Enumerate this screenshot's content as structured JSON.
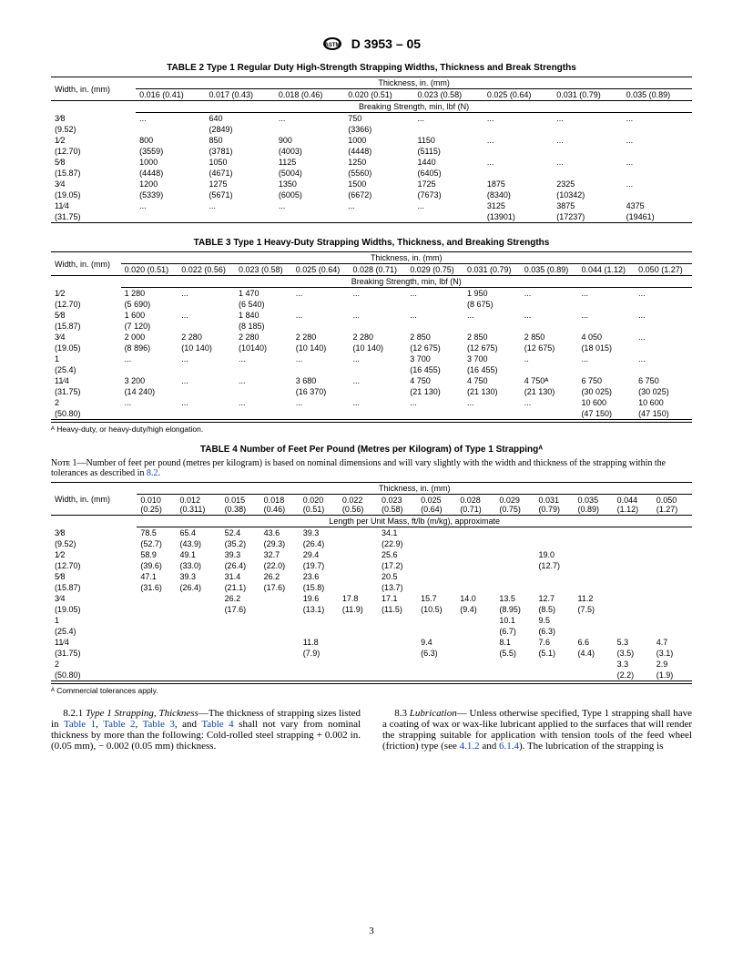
{
  "doc": {
    "designation": "D 3953 – 05",
    "page": "3"
  },
  "table2": {
    "title": "TABLE 2  Type 1 Regular Duty High-Strength Strapping Widths, Thickness and Break Strengths",
    "width_label": "Width, in. (mm)",
    "thick_head": "Thickness, in. (mm)",
    "break_head": "Breaking Strength, min, lbf (N)",
    "cols": [
      "0.016 (0.41)",
      "0.017 (0.43)",
      "0.018 (0.46)",
      "0.020 (0.51)",
      "0.023 (0.58)",
      "0.025 (0.64)",
      "0.031 (0.79)",
      "0.035 (0.89)"
    ],
    "rows": [
      {
        "w": "3⁄8",
        "mm": "(9.52)",
        "c": [
          [
            "...",
            ""
          ],
          [
            "640",
            "(2849)"
          ],
          [
            "...",
            ""
          ],
          [
            "750",
            "(3366)"
          ],
          [
            "...",
            ""
          ],
          [
            "...",
            ""
          ],
          [
            "...",
            ""
          ],
          [
            "...",
            ""
          ]
        ]
      },
      {
        "w": "1⁄2",
        "mm": "(12.70)",
        "c": [
          [
            "800",
            "(3559)"
          ],
          [
            "850",
            "(3781)"
          ],
          [
            "900",
            "(4003)"
          ],
          [
            "1000",
            "(4448)"
          ],
          [
            "1150",
            "(5115)"
          ],
          [
            "...",
            ""
          ],
          [
            "...",
            ""
          ],
          [
            "...",
            ""
          ]
        ]
      },
      {
        "w": "5⁄8",
        "mm": "(15.87)",
        "c": [
          [
            "1000",
            "(4448)"
          ],
          [
            "1050",
            "(4671)"
          ],
          [
            "1125",
            "(5004)"
          ],
          [
            "1250",
            "(5560)"
          ],
          [
            "1440",
            "(6405)"
          ],
          [
            "...",
            ""
          ],
          [
            "...",
            ""
          ],
          [
            "...",
            ""
          ]
        ]
      },
      {
        "w": "3⁄4",
        "mm": "(19.05)",
        "c": [
          [
            "1200",
            "(5339)"
          ],
          [
            "1275",
            "(5671)"
          ],
          [
            "1350",
            "(6005)"
          ],
          [
            "1500",
            "(6672)"
          ],
          [
            "1725",
            "(7673)"
          ],
          [
            "1875",
            "(8340)"
          ],
          [
            "2325",
            "(10342)"
          ],
          [
            "...",
            ""
          ]
        ]
      },
      {
        "w": "11⁄4",
        "mm": "(31.75)",
        "c": [
          [
            "...",
            ""
          ],
          [
            "...",
            ""
          ],
          [
            "...",
            ""
          ],
          [
            "...",
            ""
          ],
          [
            "...",
            ""
          ],
          [
            "3125",
            "(13901)"
          ],
          [
            "3875",
            "(17237)"
          ],
          [
            "4375",
            "(19461)"
          ]
        ]
      }
    ]
  },
  "table3": {
    "title": "TABLE 3  Type 1 Heavy-Duty Strapping Widths, Thickness, and Breaking Strengths",
    "width_label": "Width, in. (mm)",
    "thick_head": "Thickness, in. (mm)",
    "break_head": "Breaking Strength, min, lbf (N)",
    "cols": [
      "0.020 (0.51)",
      "0.022 (0.56)",
      "0.023 (0.58)",
      "0.025 (0.64)",
      "0.028 (0.71)",
      "0.029 (0.75)",
      "0.031 (0.79)",
      "0.035 (0.89)",
      "0.044 (1.12)",
      "0.050 (1.27)"
    ],
    "rows": [
      {
        "w": "1⁄2",
        "mm": "(12.70)",
        "c": [
          [
            "1 280",
            "(5 690)"
          ],
          [
            "...",
            ""
          ],
          [
            "1 470",
            "(6 540)"
          ],
          [
            "...",
            ""
          ],
          [
            "...",
            ""
          ],
          [
            "...",
            ""
          ],
          [
            "1 950",
            "(8 675)"
          ],
          [
            "...",
            ""
          ],
          [
            "...",
            ""
          ],
          [
            "...",
            ""
          ]
        ]
      },
      {
        "w": "5⁄8",
        "mm": "(15.87)",
        "c": [
          [
            "1 600",
            "(7 120)"
          ],
          [
            "...",
            ""
          ],
          [
            "1 840",
            "(8 185)"
          ],
          [
            "...",
            ""
          ],
          [
            "...",
            ""
          ],
          [
            "...",
            ""
          ],
          [
            "...",
            ""
          ],
          [
            "...",
            ""
          ],
          [
            "...",
            ""
          ],
          [
            "...",
            ""
          ]
        ]
      },
      {
        "w": "3⁄4",
        "mm": "(19.05)",
        "c": [
          [
            "2 000",
            "(8 896)"
          ],
          [
            "2 280",
            "(10 140)"
          ],
          [
            "2 280",
            "(10140)"
          ],
          [
            "2 280",
            "(10 140)"
          ],
          [
            "2 280",
            "(10 140)"
          ],
          [
            "2 850",
            "(12 675)"
          ],
          [
            "2 850",
            "(12 675)"
          ],
          [
            "2 850",
            "(12 675)"
          ],
          [
            "4 050",
            "(18 015)"
          ],
          [
            "...",
            ""
          ]
        ]
      },
      {
        "w": "1",
        "mm": "(25.4)",
        "c": [
          [
            "...",
            ""
          ],
          [
            "...",
            ""
          ],
          [
            "...",
            ""
          ],
          [
            "...",
            ""
          ],
          [
            "...",
            ""
          ],
          [
            "3 700",
            "(16 455)"
          ],
          [
            "3 700",
            "(16 455)"
          ],
          [
            "..",
            ""
          ],
          [
            "...",
            ""
          ],
          [
            "...",
            ""
          ]
        ]
      },
      {
        "w": "11⁄4",
        "mm": "(31.75)",
        "c": [
          [
            "3 200",
            "(14 240)"
          ],
          [
            "...",
            ""
          ],
          [
            "...",
            ""
          ],
          [
            "3 680",
            "(16 370)"
          ],
          [
            "...",
            ""
          ],
          [
            "4 750",
            "(21 130)"
          ],
          [
            "4 750",
            "(21 130)"
          ],
          [
            "4 750ᴬ",
            "(21 130)"
          ],
          [
            "6 750",
            "(30 025)"
          ],
          [
            "6 750",
            "(30 025)"
          ]
        ]
      },
      {
        "w": "2",
        "mm": "(50.80)",
        "c": [
          [
            "...",
            ""
          ],
          [
            "...",
            ""
          ],
          [
            "...",
            ""
          ],
          [
            "...",
            ""
          ],
          [
            "...",
            ""
          ],
          [
            "...",
            ""
          ],
          [
            "...",
            ""
          ],
          [
            "...",
            ""
          ],
          [
            "10 600",
            "(47 150)"
          ],
          [
            "10 600",
            "(47 150)"
          ]
        ]
      }
    ],
    "footnote": "ᴬ Heavy-duty, or heavy-duty/high elongation."
  },
  "table4": {
    "title": "TABLE 4  Number of Feet Per Pound (Metres per Kilogram) of Type 1 Strappingᴬ",
    "note": "Nᴏᴛᴇ 1—Number of feet per pound (metres per kilogram) is based on nominal dimensions and will vary slightly with the width and thickness of the strapping within the tolerances as described in ",
    "note_link": "8.2",
    "width_label": "Width, in. (mm)",
    "thick_head": "Thickness, in. (mm)",
    "length_head": "Length per Unit Mass, ft/lb (m/kg), approximate",
    "cols": [
      "0.010",
      "0.012",
      "0.015",
      "0.018",
      "0.020",
      "0.022",
      "0.023",
      "0.025",
      "0.028",
      "0.029",
      "0.031",
      "0.035",
      "0.044",
      "0.050"
    ],
    "cols_mm": [
      "(0.25)",
      "(0.311)",
      "(0.38)",
      "(0.46)",
      "(0.51)",
      "(0.56)",
      "(0.58)",
      "(0.64)",
      "(0.71)",
      "(0.75)",
      "(0.79)",
      "(0.89)",
      "(1.12)",
      "(1.27)"
    ],
    "rows": [
      {
        "w": "3⁄8",
        "mm": "(9.52)",
        "c": [
          [
            "78.5",
            "(52.7)"
          ],
          [
            "65.4",
            "(43.9)"
          ],
          [
            "52.4",
            "(35.2)"
          ],
          [
            "43.6",
            "(29.3)"
          ],
          [
            "39.3",
            "(26.4)"
          ],
          [
            "",
            ""
          ],
          [
            "34.1",
            "(22.9)"
          ],
          [
            "",
            ""
          ],
          [
            "",
            ""
          ],
          [
            "",
            ""
          ],
          [
            "",
            ""
          ],
          [
            "",
            ""
          ],
          [
            "",
            ""
          ],
          [
            "",
            ""
          ]
        ]
      },
      {
        "w": "1⁄2",
        "mm": "(12.70)",
        "c": [
          [
            "58.9",
            "(39.6)"
          ],
          [
            "49.1",
            "(33.0)"
          ],
          [
            "39.3",
            "(26.4)"
          ],
          [
            "32.7",
            "(22.0)"
          ],
          [
            "29.4",
            "(19.7)"
          ],
          [
            "",
            ""
          ],
          [
            "25.6",
            "(17.2)"
          ],
          [
            "",
            ""
          ],
          [
            "",
            ""
          ],
          [
            "",
            ""
          ],
          [
            "19.0",
            "(12.7)"
          ],
          [
            "",
            ""
          ],
          [
            "",
            ""
          ],
          [
            "",
            ""
          ]
        ]
      },
      {
        "w": "5⁄8",
        "mm": "(15.87)",
        "c": [
          [
            "47.1",
            "(31.6)"
          ],
          [
            "39.3",
            "(26.4)"
          ],
          [
            "31.4",
            "(21.1)"
          ],
          [
            "26.2",
            "(17.6)"
          ],
          [
            "23.6",
            "(15.8)"
          ],
          [
            "",
            ""
          ],
          [
            "20.5",
            "(13.7)"
          ],
          [
            "",
            ""
          ],
          [
            "",
            ""
          ],
          [
            "",
            ""
          ],
          [
            "",
            ""
          ],
          [
            "",
            ""
          ],
          [
            "",
            ""
          ],
          [
            "",
            ""
          ]
        ]
      },
      {
        "w": "3⁄4",
        "mm": "(19.05)",
        "c": [
          [
            "",
            ""
          ],
          [
            "",
            ""
          ],
          [
            "26.2",
            "(17.6)"
          ],
          [
            "",
            ""
          ],
          [
            "19.6",
            "(13.1)"
          ],
          [
            "17.8",
            "(11.9)"
          ],
          [
            "17.1",
            "(11.5)"
          ],
          [
            "15.7",
            "(10.5)"
          ],
          [
            "14.0",
            "(9.4)"
          ],
          [
            "13.5",
            "(8.95)"
          ],
          [
            "12.7",
            "(8.5)"
          ],
          [
            "11.2",
            "(7.5)"
          ],
          [
            "",
            ""
          ],
          [
            "",
            ""
          ]
        ]
      },
      {
        "w": "1",
        "mm": "(25.4)",
        "c": [
          [
            "",
            ""
          ],
          [
            "",
            ""
          ],
          [
            "",
            ""
          ],
          [
            "",
            ""
          ],
          [
            "",
            ""
          ],
          [
            "",
            ""
          ],
          [
            "",
            ""
          ],
          [
            "",
            ""
          ],
          [
            "",
            ""
          ],
          [
            "10.1",
            "(6.7)"
          ],
          [
            "9.5",
            "(6.3)"
          ],
          [
            "",
            ""
          ],
          [
            "",
            ""
          ],
          [
            "",
            ""
          ]
        ]
      },
      {
        "w": "11⁄4",
        "mm": "(31.75)",
        "c": [
          [
            "",
            ""
          ],
          [
            "",
            ""
          ],
          [
            "",
            ""
          ],
          [
            "",
            ""
          ],
          [
            "11.8",
            "(7.9)"
          ],
          [
            "",
            ""
          ],
          [
            "",
            ""
          ],
          [
            "9.4",
            "(6.3)"
          ],
          [
            "",
            ""
          ],
          [
            "8.1",
            "(5.5)"
          ],
          [
            "7.6",
            "(5.1)"
          ],
          [
            "6.6",
            "(4.4)"
          ],
          [
            "5.3",
            "(3.5)"
          ],
          [
            "4.7",
            "(3.1)"
          ]
        ]
      },
      {
        "w": "2",
        "mm": "(50.80)",
        "c": [
          [
            "",
            ""
          ],
          [
            "",
            ""
          ],
          [
            "",
            ""
          ],
          [
            "",
            ""
          ],
          [
            "",
            ""
          ],
          [
            "",
            ""
          ],
          [
            "",
            ""
          ],
          [
            "",
            ""
          ],
          [
            "",
            ""
          ],
          [
            "",
            ""
          ],
          [
            "",
            ""
          ],
          [
            "",
            ""
          ],
          [
            "3.3",
            "(2.2)"
          ],
          [
            "2.9",
            "(1.9)"
          ]
        ]
      }
    ],
    "footnote": "ᴬ Commercial tolerances apply."
  },
  "body": {
    "p1_lead": "8.2.1 ",
    "p1_ital": "Type 1 Strapping, Thickness",
    "p1_rest": "—The thickness of strapping sizes listed in ",
    "p1_links": [
      "Table 1",
      "Table 2",
      "Table 3",
      "Table 4"
    ],
    "p1_tail": " shall not vary from nominal thickness by more than the following: Cold-rolled steel strapping + 0.002 in. (0.05 mm), − 0.002 (0.05 mm) thickness.",
    "p2_lead": "8.3 ",
    "p2_ital": "Lubrication",
    "p2_rest": "— Unless otherwise specified, Type 1 strapping shall have a coating of wax or wax-like lubricant applied to the surfaces that will render the strapping suitable for application with tension tools of the feed wheel (friction) type (see ",
    "p2_links": [
      "4.1.2",
      "6.1.4"
    ],
    "p2_tail": "). The lubrication of the strapping is"
  }
}
